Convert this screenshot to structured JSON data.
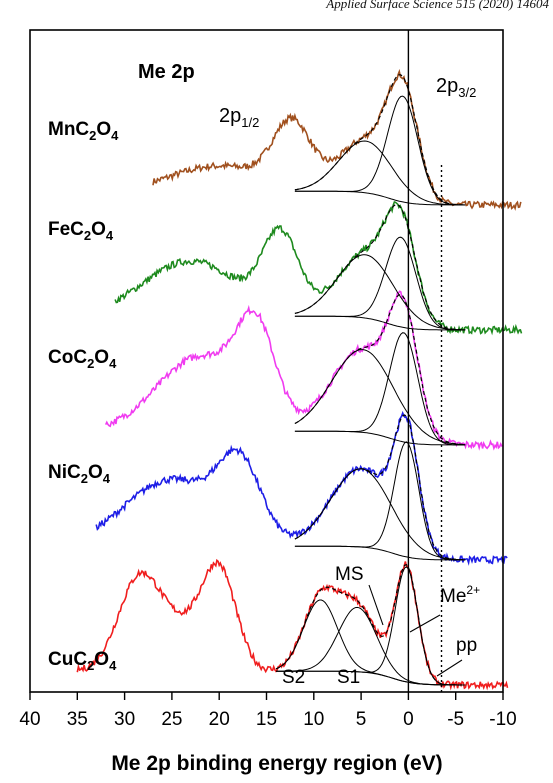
{
  "header": {
    "journal": "Applied Surface Science 515 (2020) 14604"
  },
  "colors": {
    "Mn": "#a0501e",
    "Fe": "#1e8a1e",
    "Co": "#f03cf0",
    "Ni": "#1e1ee6",
    "Cu": "#f01e1e",
    "fit": "#000000"
  },
  "chart_data": {
    "type": "line",
    "title": "Me 2p",
    "xlabel": "Me 2p binding energy region (eV)",
    "ylabel": "",
    "xlim": [
      40,
      -10
    ],
    "reversed_x": true,
    "xticks": [
      40,
      35,
      30,
      25,
      20,
      15,
      10,
      5,
      0,
      -5,
      -10
    ],
    "vertical_lines": [
      {
        "x": 0,
        "style": "solid"
      },
      {
        "x": -3.5,
        "style": "dotted"
      }
    ],
    "peak_labels": [
      {
        "text": "2p",
        "sub": "1/2"
      },
      {
        "text": "2p",
        "sub": "3/2"
      }
    ],
    "annotations": [
      "MS",
      "Me",
      "2+",
      "pp",
      "S2",
      "S1"
    ],
    "series": [
      {
        "name": "MnC2O4",
        "label_main": "MnC",
        "label_sub1": "2",
        "label_mid": "O",
        "label_sub2": "4",
        "colorKey": "Mn",
        "x_start": 27,
        "x_end": -12,
        "peaks": [
          {
            "x": 0.6,
            "h": 0.92,
            "w": 1.6
          },
          {
            "x": 4.5,
            "h": 0.45,
            "w": 2.8
          },
          {
            "x": 12.3,
            "h": 0.56,
            "w": 2.0
          },
          {
            "x": 20,
            "h": 0.22,
            "w": 5
          }
        ]
      },
      {
        "name": "FeC2O4",
        "label_main": "FeC",
        "label_sub1": "2",
        "label_mid": "O",
        "label_sub2": "4",
        "colorKey": "Fe",
        "x_start": 31,
        "x_end": -12,
        "peaks": [
          {
            "x": 0.8,
            "h": 0.78,
            "w": 1.6
          },
          {
            "x": 4.5,
            "h": 0.55,
            "w": 3.0
          },
          {
            "x": 13.5,
            "h": 0.68,
            "w": 1.9
          },
          {
            "x": 23,
            "h": 0.48,
            "w": 5
          }
        ]
      },
      {
        "name": "CoC2O4",
        "label_main": "CoC",
        "label_sub1": "2",
        "label_mid": "O",
        "label_sub2": "4",
        "colorKey": "Co",
        "x_start": 32,
        "x_end": -10,
        "peaks": [
          {
            "x": 0.5,
            "h": 0.95,
            "w": 1.5
          },
          {
            "x": 4.8,
            "h": 0.72,
            "w": 3.3
          },
          {
            "x": 16.1,
            "h": 0.76,
            "w": 2.0
          },
          {
            "x": 22,
            "h": 0.65,
            "w": 4.5
          }
        ]
      },
      {
        "name": "NiC2O4",
        "label_main": "NiC",
        "label_sub1": "2",
        "label_mid": "O",
        "label_sub2": "4",
        "colorKey": "Ni",
        "x_start": 33,
        "x_end": -10.5,
        "peaks": [
          {
            "x": 0.2,
            "h": 1.0,
            "w": 1.3
          },
          {
            "x": 5.0,
            "h": 0.68,
            "w": 3.2
          },
          {
            "x": 17.8,
            "h": 0.62,
            "w": 2.2
          },
          {
            "x": 25,
            "h": 0.58,
            "w": 5
          }
        ]
      },
      {
        "name": "CuC2O4",
        "label_main": "CuC",
        "label_sub1": "2",
        "label_mid": "O",
        "label_sub2": "4",
        "colorKey": "Cu",
        "x_start": 35,
        "x_end": -10.5,
        "peaks": [
          {
            "x": 0.2,
            "h": 1.0,
            "w": 1.2
          },
          {
            "x": 9.3,
            "h": 0.62,
            "w": 1.8
          },
          {
            "x": 5.4,
            "h": 0.56,
            "w": 2.0
          },
          {
            "x": 20.0,
            "h": 0.84,
            "w": 1.8
          },
          {
            "x": 28.5,
            "h": 0.78,
            "w": 2.2
          },
          {
            "x": 24,
            "h": 0.35,
            "w": 2.5
          }
        ]
      }
    ]
  }
}
